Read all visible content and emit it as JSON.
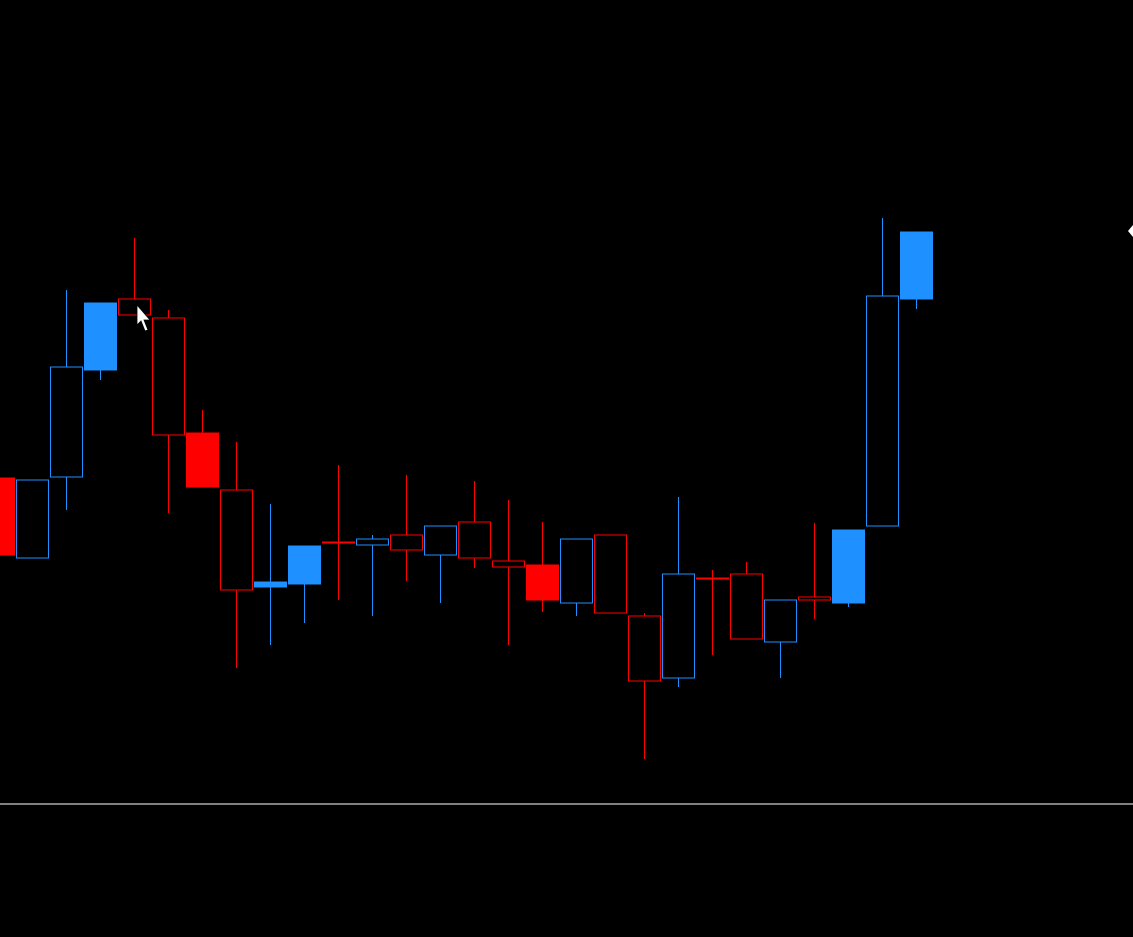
{
  "chart_data": {
    "type": "candlestick",
    "open": [
      459,
      379,
      460,
      567,
      638,
      619,
      504,
      447,
      350,
      353,
      395,
      392,
      402,
      382,
      415,
      376,
      372,
      334,
      402,
      321,
      259,
      359,
      363,
      295,
      340,
      334,
      411,
      638
    ],
    "high": [
      459,
      457,
      647,
      634,
      699,
      627,
      527,
      495,
      433,
      391,
      472,
      402,
      462,
      411,
      456,
      437,
      415,
      398,
      402,
      324,
      440,
      367,
      375,
      337,
      414,
      407,
      719,
      705
    ],
    "low": [
      382,
      379,
      427,
      557,
      622,
      424,
      450,
      269,
      292,
      314,
      337,
      321,
      356,
      334,
      369,
      292,
      325,
      321,
      324,
      178,
      250,
      282,
      298,
      259,
      318,
      330,
      411,
      628
    ],
    "close": [
      382,
      457,
      570,
      634,
      622,
      502,
      450,
      347,
      355,
      391,
      394,
      398,
      387,
      411,
      379,
      370,
      337,
      398,
      324,
      256,
      363,
      358,
      298,
      337,
      337,
      407,
      641,
      705
    ],
    "filled": [
      true,
      false,
      false,
      true,
      false,
      false,
      true,
      false,
      true,
      true,
      false,
      false,
      false,
      false,
      false,
      false,
      true,
      false,
      false,
      false,
      false,
      false,
      false,
      false,
      false,
      true,
      false,
      true
    ],
    "up_color": "#1e90ff",
    "down_color": "#ff0000",
    "ylim": [
      0,
      937
    ]
  }
}
